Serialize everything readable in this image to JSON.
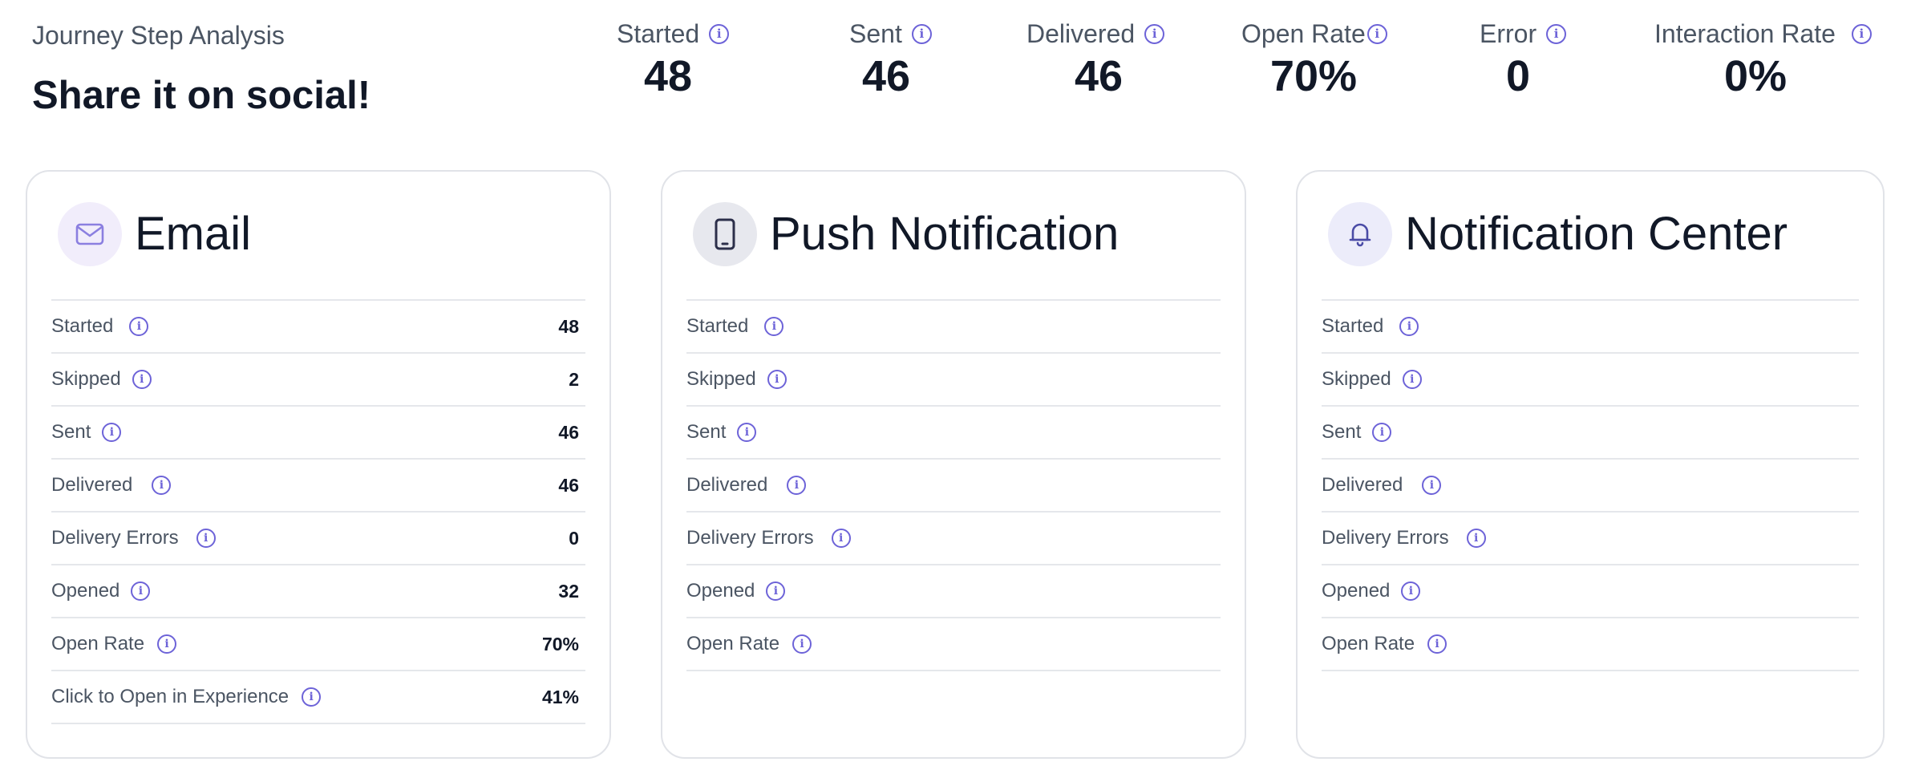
{
  "header": {
    "subtitle": "Journey Step Analysis",
    "title": "Share it on social!"
  },
  "metrics": [
    {
      "label": "Started",
      "value": "48"
    },
    {
      "label": "Sent",
      "value": "46"
    },
    {
      "label": "Delivered",
      "value": "46"
    },
    {
      "label": "Open Rate",
      "value": "70%"
    },
    {
      "label": "Error",
      "value": "0"
    },
    {
      "label": "Interaction Rate",
      "value": "0%"
    }
  ],
  "cards": [
    {
      "title": "Email",
      "icon": "mail-icon",
      "rows": [
        {
          "label": "Started",
          "value": "48"
        },
        {
          "label": "Skipped",
          "value": "2"
        },
        {
          "label": "Sent",
          "value": "46"
        },
        {
          "label": "Delivered",
          "value": "46"
        },
        {
          "label": "Delivery Errors",
          "value": "0"
        },
        {
          "label": "Opened",
          "value": "32"
        },
        {
          "label": "Open Rate",
          "value": "70%"
        },
        {
          "label": "Click to Open in Experience",
          "value": "41%"
        }
      ]
    },
    {
      "title": "Push Notification",
      "icon": "smartphone-icon",
      "rows": [
        {
          "label": "Started",
          "value": ""
        },
        {
          "label": "Skipped",
          "value": ""
        },
        {
          "label": "Sent",
          "value": ""
        },
        {
          "label": "Delivered",
          "value": ""
        },
        {
          "label": "Delivery Errors",
          "value": ""
        },
        {
          "label": "Opened",
          "value": ""
        },
        {
          "label": "Open Rate",
          "value": ""
        }
      ]
    },
    {
      "title": "Notification Center",
      "icon": "bell-icon",
      "rows": [
        {
          "label": "Started",
          "value": ""
        },
        {
          "label": "Skipped",
          "value": ""
        },
        {
          "label": "Sent",
          "value": ""
        },
        {
          "label": "Delivered",
          "value": ""
        },
        {
          "label": "Delivery Errors",
          "value": ""
        },
        {
          "label": "Opened",
          "value": ""
        },
        {
          "label": "Open Rate",
          "value": ""
        }
      ]
    }
  ],
  "colors": {
    "accent": "#6d63d8",
    "border": "#e1e3e8",
    "mail_icon_bg": "#f1edfb",
    "phone_icon_bg": "#e7e8ee",
    "bell_icon_bg": "#ececfa"
  }
}
